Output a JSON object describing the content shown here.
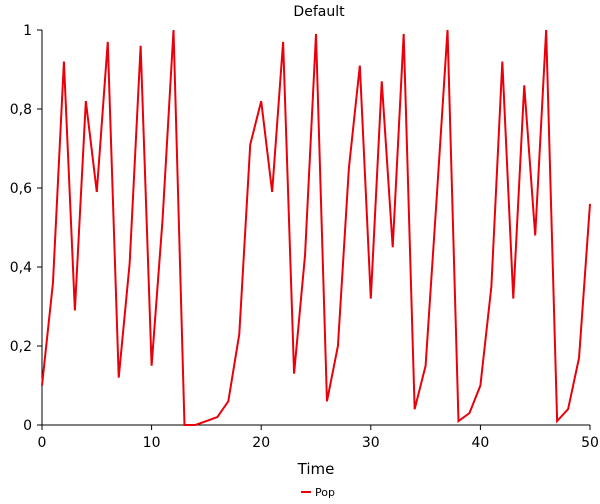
{
  "chart_data": {
    "type": "line",
    "title": "Default",
    "xlabel": "Time",
    "ylabel": "",
    "xlim": [
      0,
      50
    ],
    "ylim": [
      0,
      1
    ],
    "x_ticks": [
      0,
      10,
      20,
      30,
      40,
      50
    ],
    "x_tick_labels": [
      "0",
      "10",
      "20",
      "30",
      "40",
      "50"
    ],
    "y_ticks": [
      0,
      0.2,
      0.4,
      0.6,
      0.8,
      1
    ],
    "y_tick_labels": [
      "0",
      "0,2",
      "0,4",
      "0,6",
      "0,8",
      "1"
    ],
    "grid": false,
    "legend_position": "bottom-center",
    "series": [
      {
        "name": "Pop",
        "color": "#e8000b",
        "x": [
          0,
          1,
          2,
          3,
          4,
          5,
          6,
          7,
          8,
          9,
          10,
          11,
          12,
          13,
          14,
          15,
          16,
          17,
          18,
          19,
          20,
          21,
          22,
          23,
          24,
          25,
          26,
          27,
          28,
          29,
          30,
          31,
          32,
          33,
          34,
          35,
          36,
          37,
          38,
          39,
          40,
          41,
          42,
          43,
          44,
          45,
          46,
          47,
          48,
          49,
          50
        ],
        "values": [
          0.1,
          0.36,
          0.92,
          0.29,
          0.82,
          0.59,
          0.97,
          0.12,
          0.41,
          0.96,
          0.15,
          0.52,
          1.0,
          0.0,
          0.0,
          0.01,
          0.02,
          0.06,
          0.23,
          0.71,
          0.82,
          0.59,
          0.97,
          0.13,
          0.43,
          0.99,
          0.06,
          0.2,
          0.65,
          0.91,
          0.32,
          0.87,
          0.45,
          0.99,
          0.04,
          0.15,
          0.57,
          1.0,
          0.01,
          0.03,
          0.1,
          0.35,
          0.92,
          0.32,
          0.86,
          0.48,
          1.0,
          0.01,
          0.04,
          0.17,
          0.56
        ]
      }
    ]
  }
}
